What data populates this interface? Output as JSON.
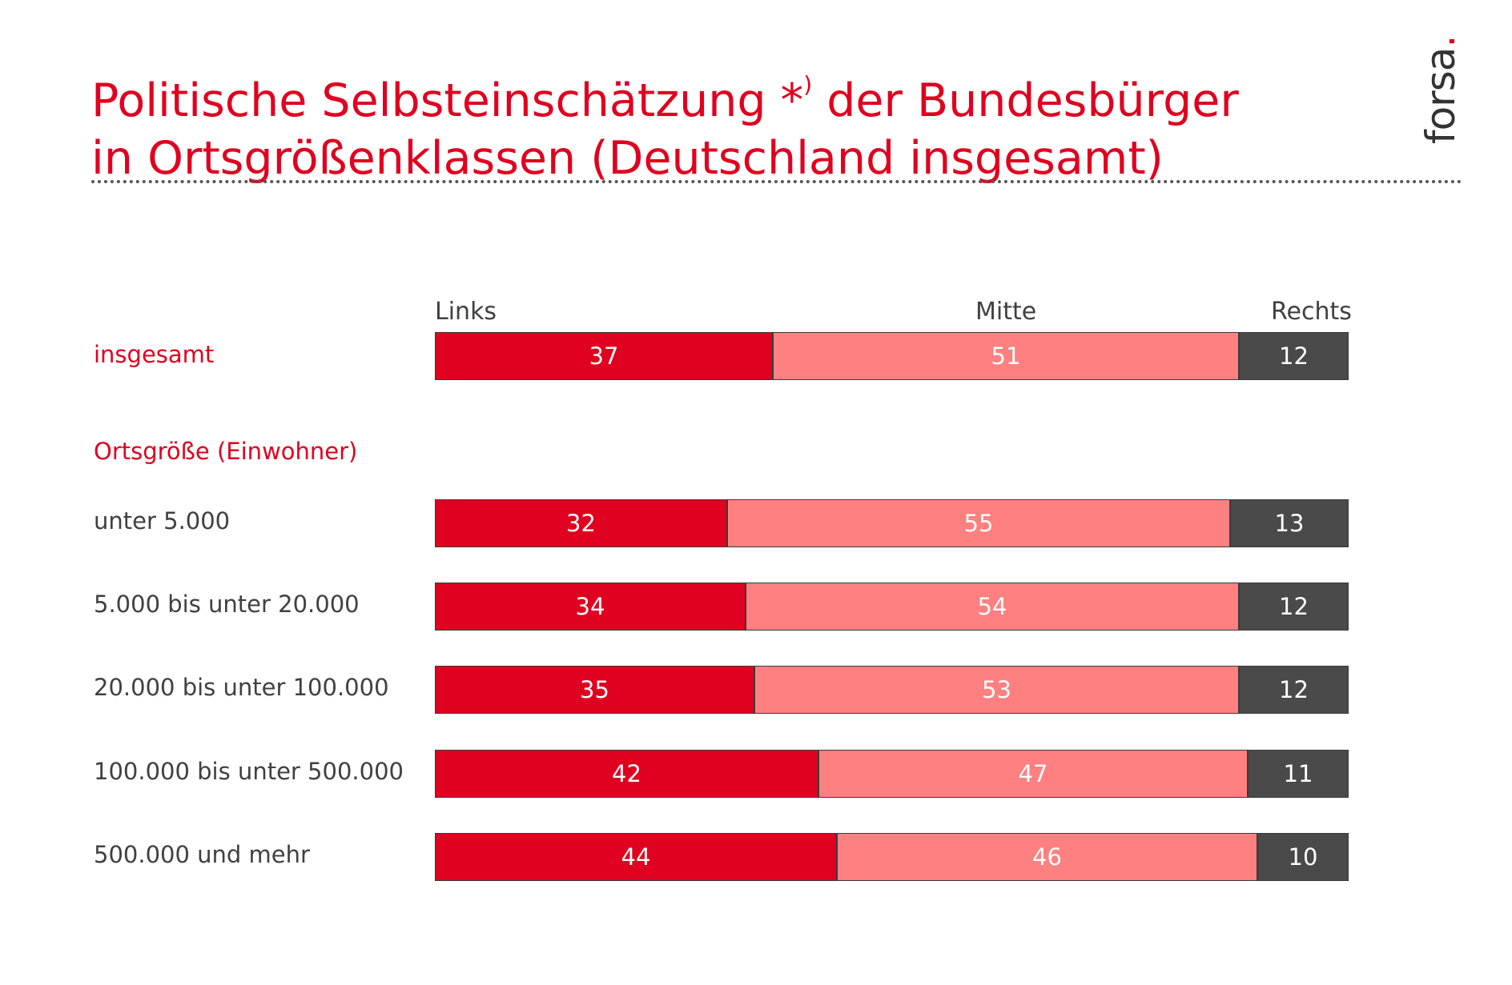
{
  "title": {
    "line1_before": "Politische Selbsteinschätzung *",
    "line1_sup": ")",
    "line1_after": " der Bundesbürger",
    "line2": "in Ortsgrößenklassen (Deutschland insgesamt)"
  },
  "logo": {
    "text": "forsa",
    "dot": "."
  },
  "colors": {
    "links": "#e0001f",
    "mitte": "#ff8080",
    "rechts": "#4a4a4a",
    "accent": "#e0001f"
  },
  "section_label": "Ortsgröße (Einwohner)",
  "chart_data": {
    "type": "bar",
    "orientation": "horizontal",
    "stacked": true,
    "normalized": true,
    "title": "Politische Selbsteinschätzung *) der Bundesbürger in Ortsgrößenklassen (Deutschland insgesamt)",
    "scale_labels": [
      "Links",
      "Mitte",
      "Rechts"
    ],
    "categories": [
      "insgesamt",
      "unter 5.000",
      "5.000 bis unter 20.000",
      "20.000 bis unter 100.000",
      "100.000 bis unter 500.000",
      "500.000 und mehr"
    ],
    "series": [
      {
        "name": "Links",
        "values": [
          37,
          32,
          34,
          35,
          42,
          44
        ]
      },
      {
        "name": "Mitte",
        "values": [
          51,
          55,
          54,
          53,
          47,
          46
        ]
      },
      {
        "name": "Rechts",
        "values": [
          12,
          13,
          12,
          12,
          11,
          10
        ]
      }
    ],
    "xlim": [
      0,
      100
    ],
    "grid": false,
    "xlabel": "",
    "ylabel": ""
  }
}
